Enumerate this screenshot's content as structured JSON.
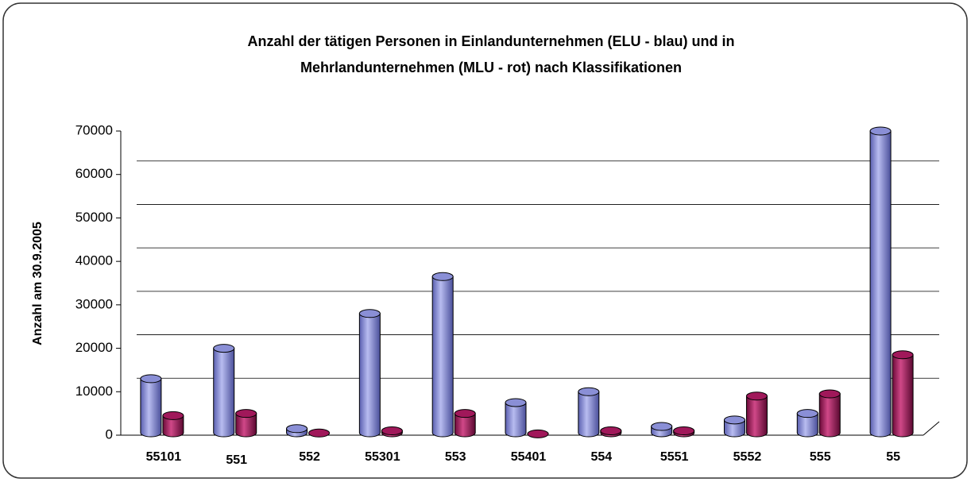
{
  "chart_data": {
    "type": "bar3d",
    "title": "Anzahl der tätigen Personen in Einlandunternehmen (ELU - blau) und in Mehrlandunternehmen (MLU - rot) nach Klassifikationen",
    "y_label": "Anzahl am 30.9.2005",
    "categories": [
      "55101",
      "551",
      "552",
      "55301",
      "553",
      "55401",
      "554",
      "5551",
      "5552",
      "555",
      "55"
    ],
    "series": [
      {
        "color": "#8a8fd6",
        "values": [
          13000,
          20000,
          1500,
          28000,
          36500,
          7500,
          10000,
          2000,
          3500,
          5000,
          70000
        ]
      },
      {
        "color": "#a0185a",
        "values": [
          4500,
          5000,
          500,
          1000,
          5000,
          300,
          1000,
          1000,
          9000,
          9500,
          18500
        ]
      }
    ],
    "ylim": [
      0,
      70000
    ],
    "yticks": [
      0,
      10000,
      20000,
      30000,
      40000,
      50000,
      60000,
      70000
    ],
    "grid": true
  }
}
